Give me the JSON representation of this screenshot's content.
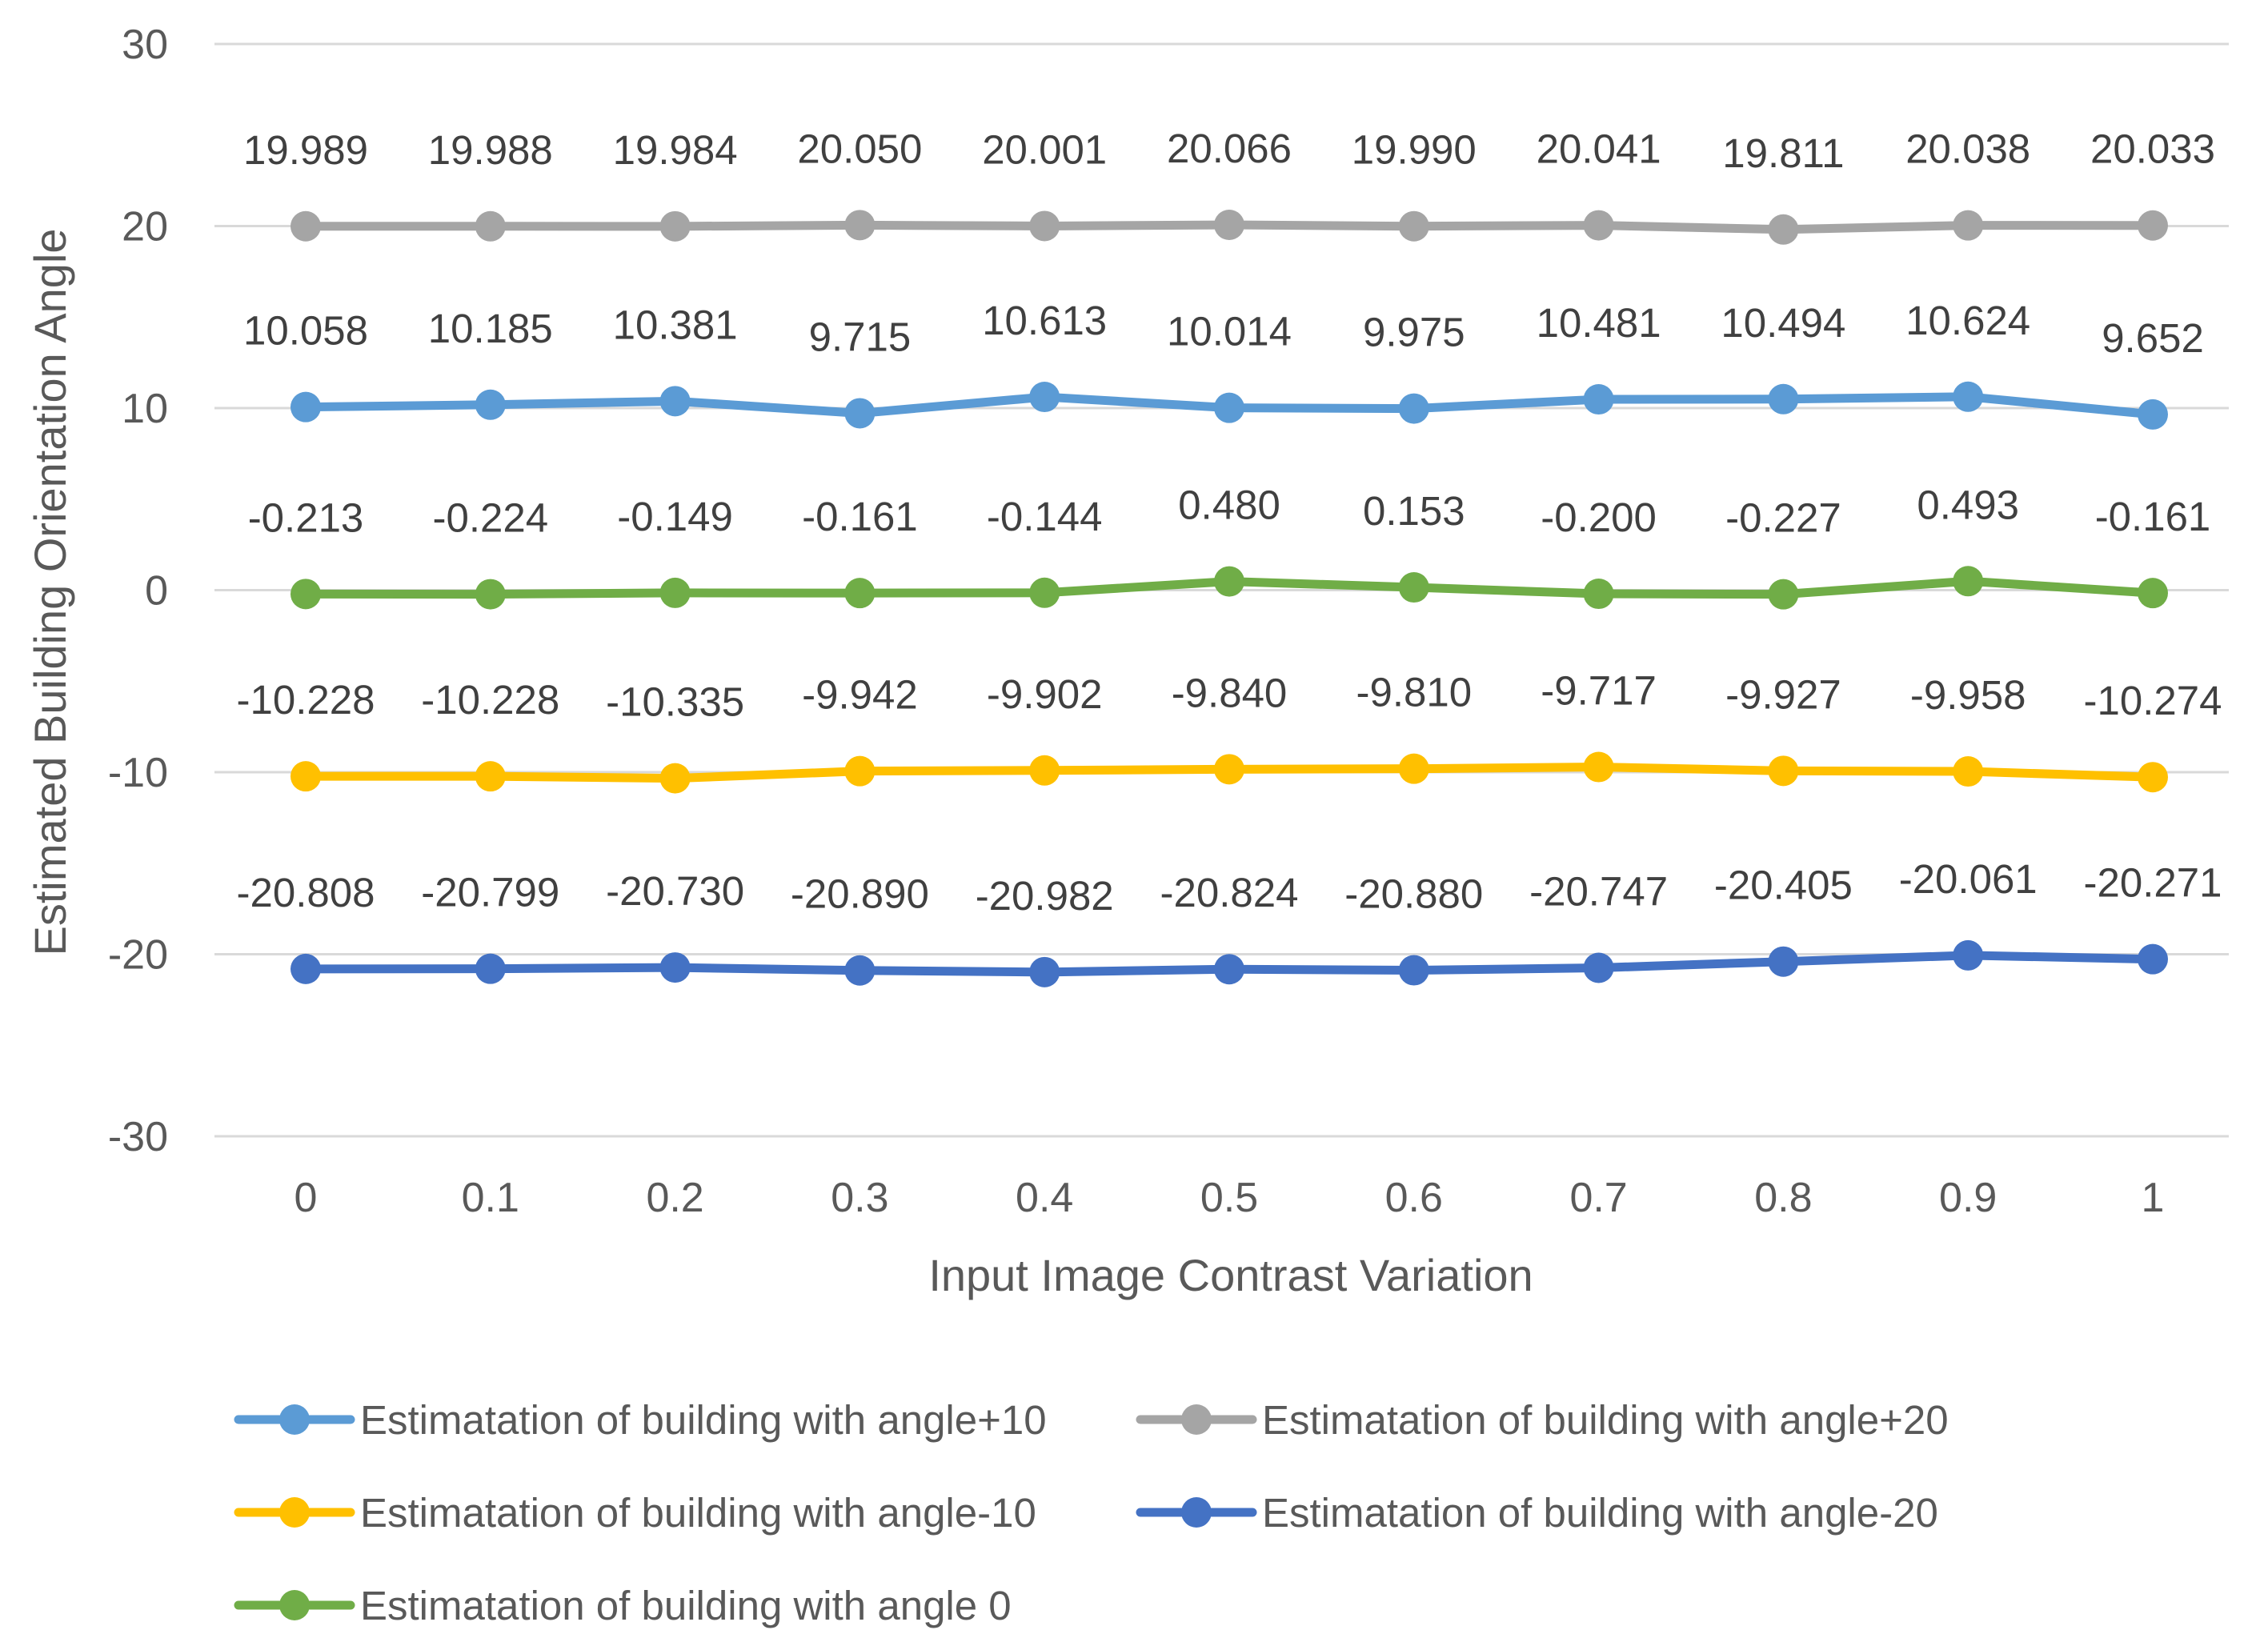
{
  "chart_data": {
    "type": "line",
    "title": "",
    "xlabel": "Input Image Contrast Variation",
    "ylabel": "Estimated Building Orientation Angle",
    "x": [
      "0",
      "0.1",
      "0.2",
      "0.3",
      "0.4",
      "0.5",
      "0.6",
      "0.7",
      "0.8",
      "0.9",
      "1"
    ],
    "ylim": [
      -30,
      30
    ],
    "yticks": [
      "-30",
      "-20",
      "-10",
      "0",
      "10",
      "20",
      "30"
    ],
    "grid": true,
    "legend_position": "bottom",
    "series": [
      {
        "name": "Estimatation of building with angle+10",
        "color": "#5B9BD5",
        "values": [
          10.058,
          10.185,
          10.381,
          9.715,
          10.613,
          10.014,
          9.975,
          10.481,
          10.494,
          10.624,
          9.652
        ],
        "labels": [
          "10.058",
          "10.185",
          "10.381",
          "9.715",
          "10.613",
          "10.014",
          "9.975",
          "10.481",
          "10.494",
          "10.624",
          "9.652"
        ]
      },
      {
        "name": "Estimatation of building with angle+20",
        "color": "#A5A5A5",
        "values": [
          19.989,
          19.988,
          19.984,
          20.05,
          20.001,
          20.066,
          19.99,
          20.041,
          19.811,
          20.038,
          20.033
        ],
        "labels": [
          "19.989",
          "19.988",
          "19.984",
          "20.050",
          "20.001",
          "20.066",
          "19.990",
          "20.041",
          "19.811",
          "20.038",
          "20.033"
        ]
      },
      {
        "name": "Estimatation of building with angle-10",
        "color": "#FFC000",
        "values": [
          -10.228,
          -10.228,
          -10.335,
          -9.942,
          -9.902,
          -9.84,
          -9.81,
          -9.717,
          -9.927,
          -9.958,
          -10.274
        ],
        "labels": [
          "-10.228",
          "-10.228",
          "-10.335",
          "-9.942",
          "-9.902",
          "-9.840",
          "-9.810",
          "-9.717",
          "-9.927",
          "-9.958",
          "-10.274"
        ]
      },
      {
        "name": "Estimatation of building with angle-20",
        "color": "#4472C4",
        "values": [
          -20.808,
          -20.799,
          -20.73,
          -20.89,
          -20.982,
          -20.824,
          -20.88,
          -20.747,
          -20.405,
          -20.061,
          -20.271
        ],
        "labels": [
          "-20.808",
          "-20.799",
          "-20.730",
          "-20.890",
          "-20.982",
          "-20.824",
          "-20.880",
          "-20.747",
          "-20.405",
          "-20.061",
          "-20.271"
        ]
      },
      {
        "name": "Estimatation of building with angle 0",
        "color": "#70AD47",
        "values": [
          -0.213,
          -0.224,
          -0.149,
          -0.161,
          -0.144,
          0.48,
          0.153,
          -0.2,
          -0.227,
          0.493,
          -0.161
        ],
        "labels": [
          "-0.213",
          "-0.224",
          "-0.149",
          "-0.161",
          "-0.144",
          "0.480",
          "0.153",
          "-0.200",
          "-0.227",
          "0.493",
          "-0.161"
        ]
      }
    ]
  }
}
